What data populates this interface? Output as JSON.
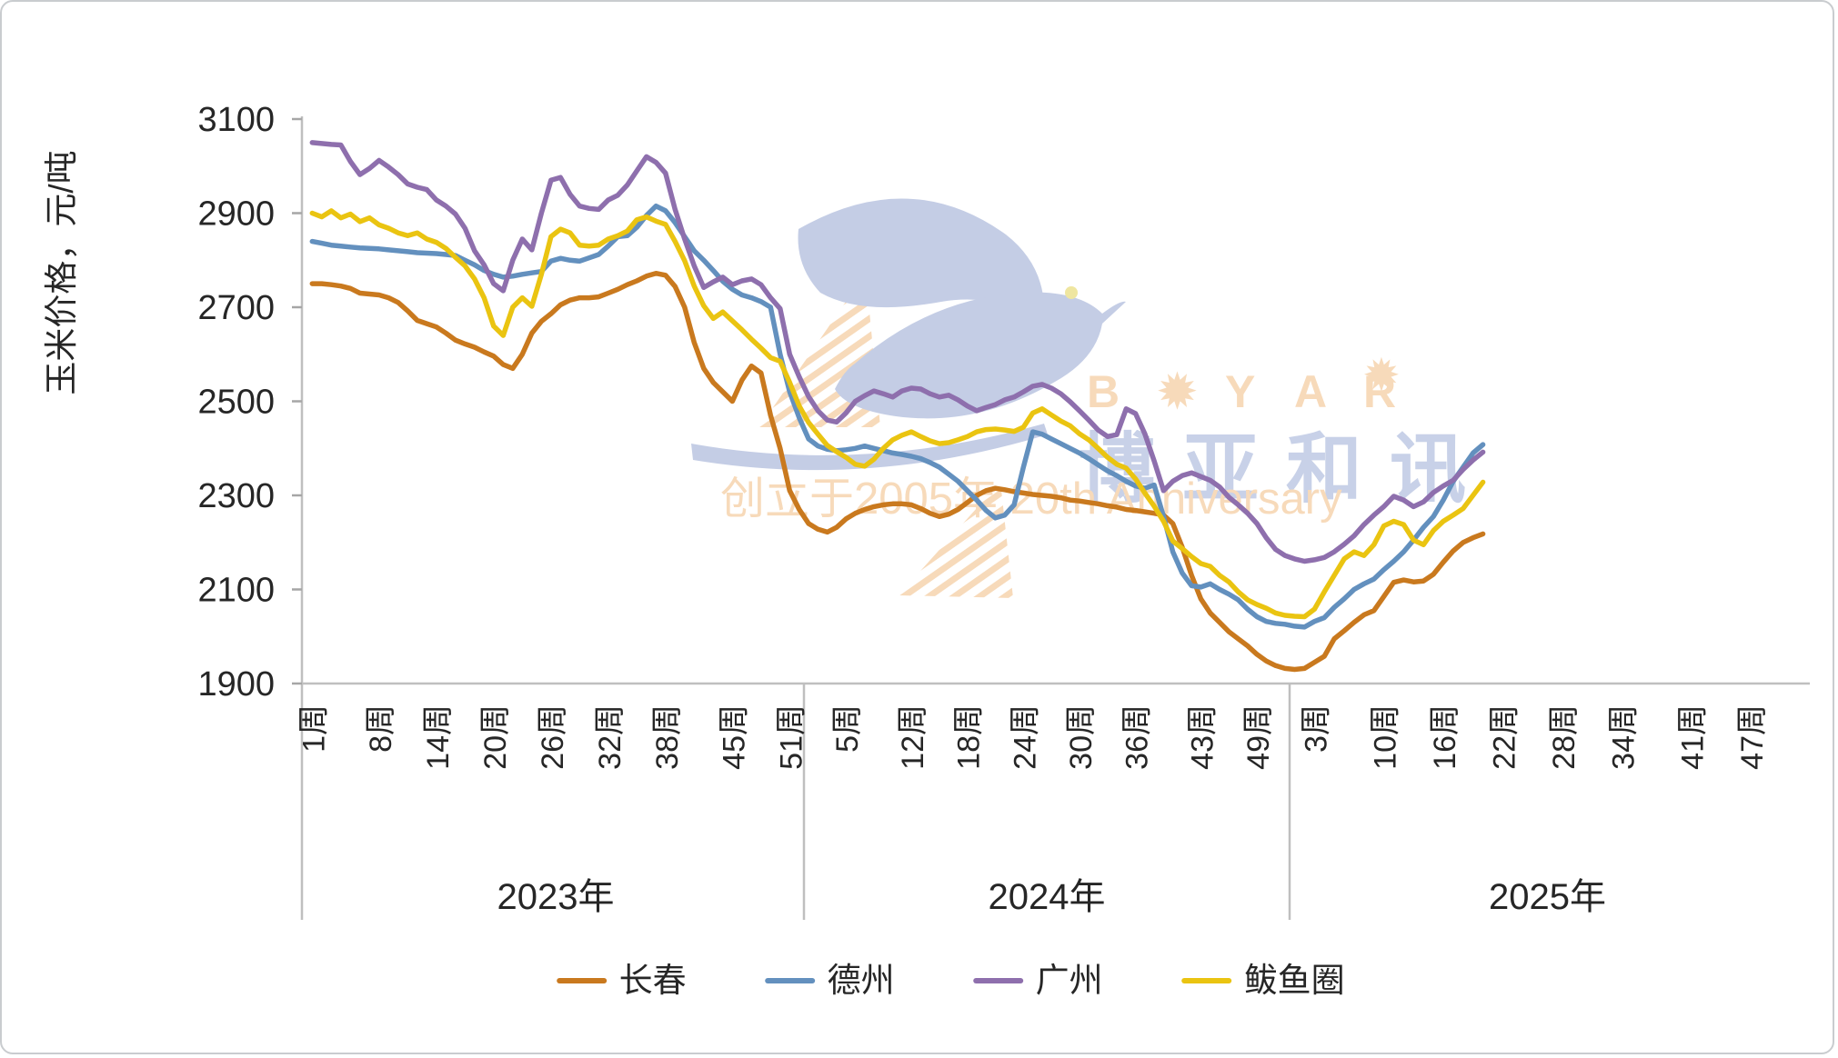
{
  "chart_data": {
    "type": "line",
    "y_axis_title": "玉米价格，元/吨",
    "y_min": 1900,
    "y_max": 3100,
    "y_tick_step": 200,
    "y_ticks": [
      3100,
      2900,
      2700,
      2500,
      2300,
      2100,
      1900
    ],
    "grid": "off",
    "legend_position": "bottom",
    "years": [
      {
        "label": "2023年",
        "weeks_in_axis": 52,
        "tick_weeks": [
          1,
          8,
          14,
          20,
          26,
          32,
          38,
          45,
          51
        ],
        "tick_labels": [
          "1周",
          "8周",
          "14周",
          "20周",
          "26周",
          "32周",
          "38周",
          "45周",
          "51周"
        ]
      },
      {
        "label": "2024年",
        "weeks_in_axis": 52,
        "tick_weeks": [
          5,
          12,
          18,
          24,
          30,
          36,
          43,
          49
        ],
        "tick_labels": [
          "5周",
          "12周",
          "18周",
          "24周",
          "30周",
          "36周",
          "43周",
          "49周"
        ]
      },
      {
        "label": "2025年",
        "weeks_in_axis": 52,
        "tick_weeks": [
          3,
          10,
          16,
          22,
          28,
          34,
          41,
          47
        ],
        "tick_labels": [
          "3周",
          "10周",
          "16周",
          "22周",
          "28周",
          "34周",
          "41周",
          "47周"
        ]
      }
    ],
    "series": [
      {
        "id": "changchun",
        "name": "长春",
        "color": "#C9791E",
        "values_2023": [
          2750,
          2750,
          2748,
          2745,
          2740,
          2730,
          2728,
          2726,
          2720,
          2710,
          2692,
          2672,
          2665,
          2658,
          2645,
          2630,
          2622,
          2615,
          2605,
          2596,
          2578,
          2570,
          2600,
          2645,
          2670,
          2686,
          2705,
          2715,
          2720,
          2720,
          2722,
          2730,
          2738,
          2748,
          2756,
          2766,
          2772,
          2768,
          2744,
          2700,
          2625,
          2570,
          2540,
          2520,
          2500,
          2545,
          2575,
          2560,
          2470,
          2400,
          2310,
          2270
        ],
        "values_2024": [
          2240,
          2228,
          2222,
          2232,
          2250,
          2262,
          2270,
          2276,
          2280,
          2282,
          2282,
          2280,
          2272,
          2262,
          2255,
          2260,
          2270,
          2285,
          2300,
          2310,
          2315,
          2312,
          2308,
          2305,
          2302,
          2300,
          2298,
          2295,
          2290,
          2288,
          2285,
          2282,
          2278,
          2275,
          2270,
          2268,
          2265,
          2262,
          2258,
          2240,
          2190,
          2130,
          2080,
          2050,
          2030,
          2010,
          1995,
          1980,
          1962,
          1948,
          1938,
          1932
        ],
        "values_2025": [
          1930,
          1932,
          1945,
          1958,
          1995,
          2012,
          2030,
          2046,
          2055,
          2085,
          2115,
          2120,
          2116,
          2118,
          2132,
          2158,
          2182,
          2200,
          2210,
          2218
        ]
      },
      {
        "id": "dezhou",
        "name": "德州",
        "color": "#6390BE",
        "values_2023": [
          2840,
          2836,
          2832,
          2830,
          2828,
          2826,
          2825,
          2824,
          2822,
          2820,
          2818,
          2816,
          2815,
          2814,
          2812,
          2810,
          2800,
          2790,
          2778,
          2770,
          2764,
          2766,
          2770,
          2773,
          2776,
          2798,
          2804,
          2800,
          2798,
          2805,
          2812,
          2830,
          2850,
          2852,
          2870,
          2895,
          2915,
          2905,
          2880,
          2850,
          2820,
          2800,
          2778,
          2755,
          2738,
          2726,
          2720,
          2712,
          2700,
          2600,
          2520,
          2465
        ],
        "values_2024": [
          2420,
          2405,
          2398,
          2395,
          2397,
          2400,
          2405,
          2400,
          2395,
          2390,
          2387,
          2383,
          2378,
          2370,
          2360,
          2345,
          2330,
          2310,
          2290,
          2268,
          2252,
          2258,
          2280,
          2360,
          2435,
          2430,
          2420,
          2410,
          2400,
          2390,
          2378,
          2365,
          2352,
          2342,
          2330,
          2320,
          2315,
          2322,
          2255,
          2180,
          2135,
          2108,
          2105,
          2112,
          2100,
          2090,
          2078,
          2058,
          2042,
          2032,
          2028,
          2026
        ],
        "values_2025": [
          2022,
          2020,
          2032,
          2040,
          2062,
          2080,
          2100,
          2112,
          2122,
          2142,
          2160,
          2180,
          2205,
          2232,
          2255,
          2290,
          2330,
          2360,
          2390,
          2408
        ]
      },
      {
        "id": "guangzhou",
        "name": "广州",
        "color": "#8E6FAD",
        "values_2023": [
          3050,
          3048,
          3046,
          3045,
          3010,
          2982,
          2995,
          3012,
          2998,
          2982,
          2962,
          2955,
          2950,
          2928,
          2915,
          2898,
          2868,
          2820,
          2790,
          2750,
          2735,
          2800,
          2845,
          2822,
          2900,
          2970,
          2976,
          2940,
          2915,
          2910,
          2908,
          2928,
          2938,
          2960,
          2990,
          3020,
          3008,
          2985,
          2908,
          2845,
          2788,
          2742,
          2754,
          2764,
          2748,
          2756,
          2760,
          2748,
          2720,
          2697,
          2600,
          2552
        ],
        "values_2024": [
          2510,
          2480,
          2460,
          2456,
          2475,
          2500,
          2512,
          2522,
          2516,
          2509,
          2522,
          2528,
          2526,
          2516,
          2509,
          2513,
          2503,
          2490,
          2480,
          2487,
          2493,
          2503,
          2509,
          2520,
          2532,
          2536,
          2528,
          2516,
          2499,
          2480,
          2460,
          2439,
          2425,
          2429,
          2484,
          2474,
          2431,
          2373,
          2310,
          2330,
          2342,
          2348,
          2340,
          2332,
          2318,
          2296,
          2280,
          2262,
          2240,
          2210,
          2185,
          2172
        ],
        "values_2025": [
          2165,
          2160,
          2163,
          2168,
          2180,
          2196,
          2214,
          2238,
          2258,
          2276,
          2298,
          2290,
          2276,
          2286,
          2306,
          2320,
          2332,
          2355,
          2375,
          2392
        ]
      },
      {
        "id": "bayuquan",
        "name": "鲅鱼圈",
        "color": "#EAC411",
        "values_2023": [
          2900,
          2892,
          2905,
          2890,
          2898,
          2882,
          2890,
          2875,
          2868,
          2858,
          2852,
          2858,
          2845,
          2838,
          2825,
          2806,
          2788,
          2760,
          2720,
          2660,
          2640,
          2700,
          2720,
          2702,
          2770,
          2850,
          2866,
          2858,
          2832,
          2830,
          2832,
          2845,
          2852,
          2862,
          2886,
          2892,
          2883,
          2876,
          2840,
          2799,
          2745,
          2703,
          2676,
          2690,
          2671,
          2652,
          2632,
          2613,
          2593,
          2585,
          2540,
          2490
        ],
        "values_2024": [
          2455,
          2430,
          2406,
          2393,
          2381,
          2366,
          2362,
          2377,
          2400,
          2418,
          2428,
          2435,
          2425,
          2416,
          2410,
          2412,
          2418,
          2425,
          2435,
          2440,
          2441,
          2439,
          2436,
          2445,
          2475,
          2484,
          2471,
          2458,
          2448,
          2431,
          2418,
          2400,
          2381,
          2366,
          2358,
          2335,
          2305,
          2277,
          2245,
          2203,
          2187,
          2170,
          2155,
          2149,
          2130,
          2116,
          2095,
          2078,
          2068,
          2060,
          2050,
          2045
        ],
        "values_2025": [
          2043,
          2042,
          2058,
          2095,
          2130,
          2165,
          2180,
          2172,
          2195,
          2235,
          2245,
          2238,
          2205,
          2195,
          2225,
          2245,
          2258,
          2272,
          2300,
          2328
        ]
      }
    ]
  },
  "watermark": {
    "brand_en": "BOYAR",
    "sunburst_icon": "✹",
    "brand_cn": "博亚和讯",
    "tagline": "创立于2005年 20th Anniversary",
    "color_orange": "#F7DABA",
    "color_blue": "#C8D1E8",
    "dove_color": "#C4CDE5",
    "eye_color": "#EFE6A0"
  },
  "style": {
    "axis_color": "#BFBFBF",
    "tick_color": "#A6A6A6",
    "label_color": "#262626",
    "line_width": 5.5
  }
}
